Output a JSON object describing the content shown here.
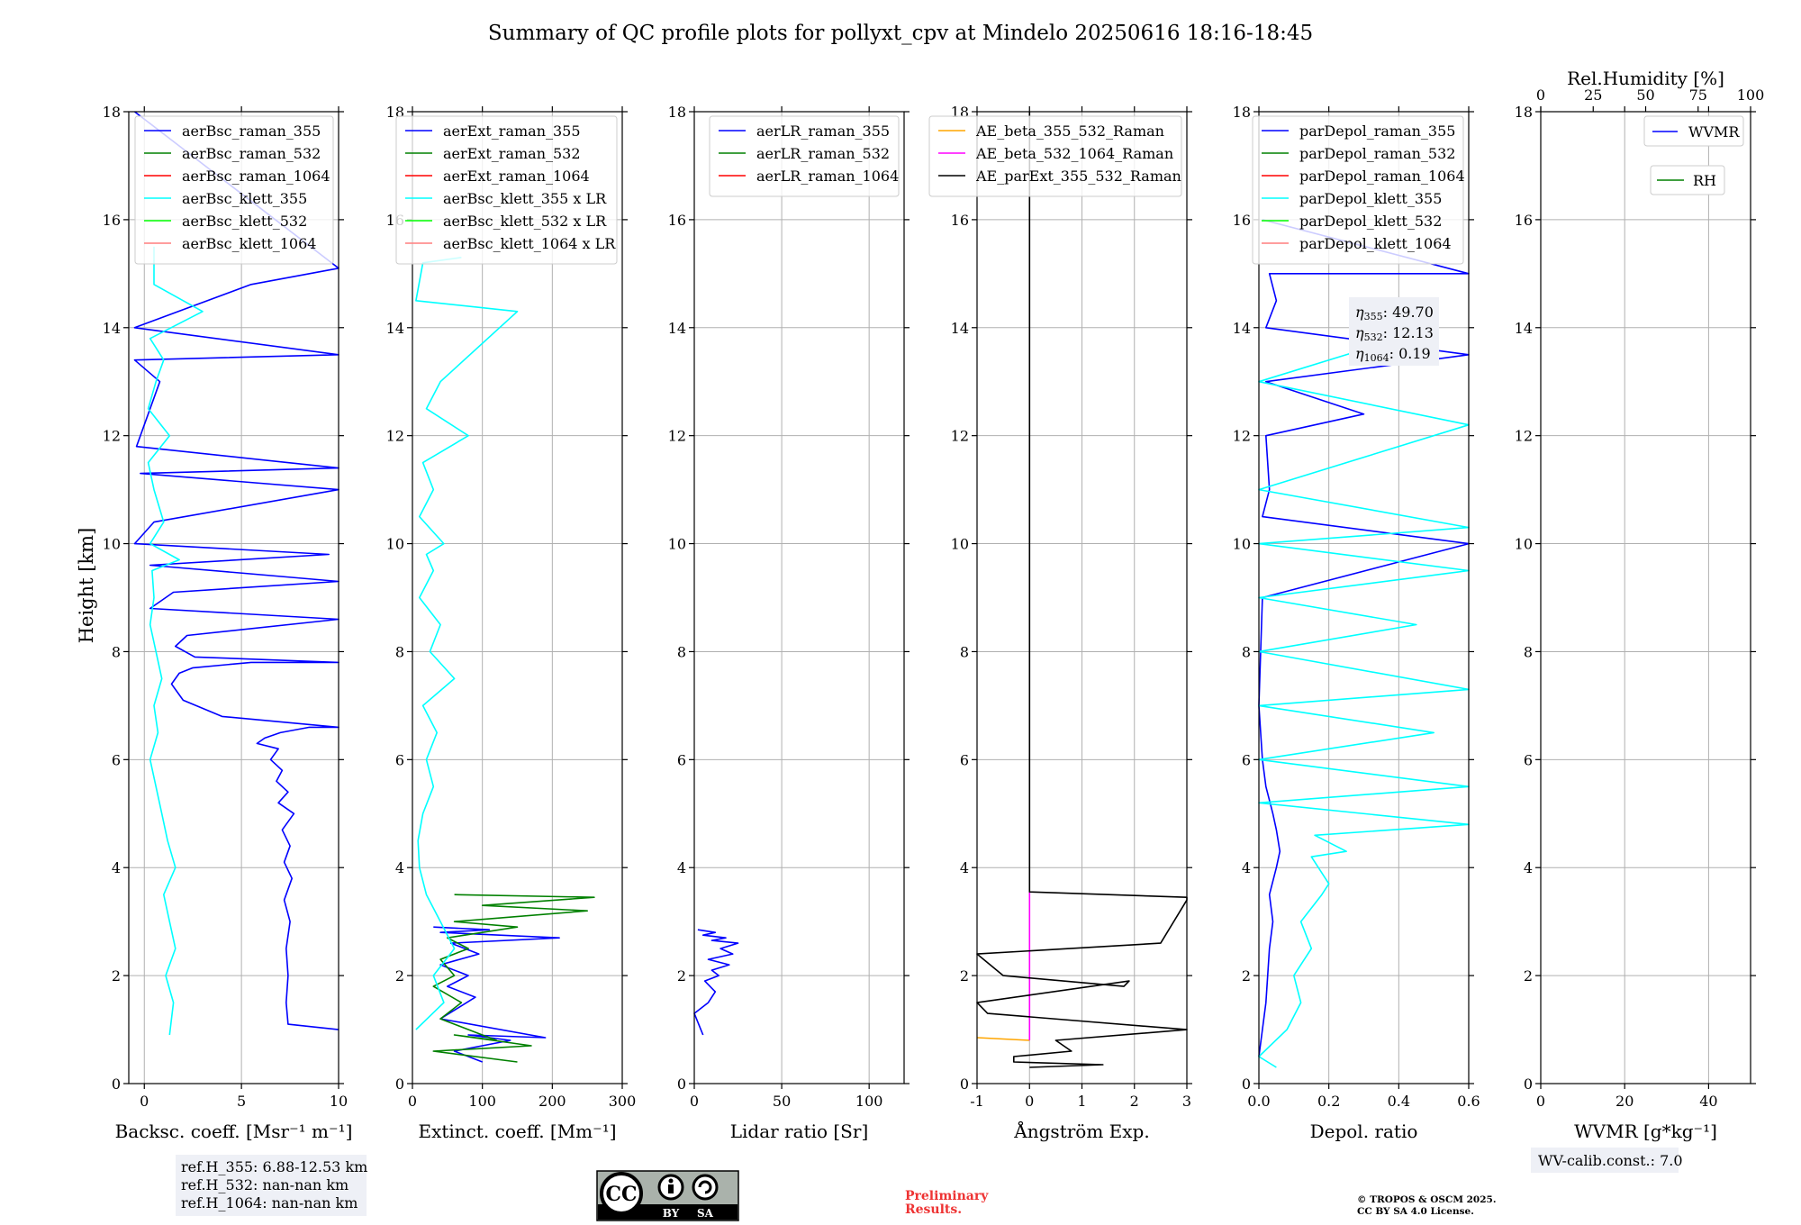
{
  "title": "Summary of QC profile plots for pollyxt_cpv at Mindelo 20250616 18:16-18:45",
  "ylabel": "Height [km]",
  "colors": {
    "blue": "#0000ff",
    "green": "#008000",
    "red": "#ff0000",
    "cyan": "#00ffff",
    "lime": "#00ff00",
    "salmon": "#ff7f7f",
    "orange": "#ffa500",
    "magenta": "#ff00ff",
    "black": "#000000",
    "grid": "#b0b0b0",
    "boxbg": "#eef0f6"
  },
  "chart_data": [
    {
      "id": "bsc",
      "type": "line",
      "xlabel": "Backsc. coeff. [Msr⁻¹ m⁻¹]",
      "xlim": [
        -0.8,
        10
      ],
      "ylim": [
        0,
        18
      ],
      "xticks": [
        0,
        5,
        10
      ],
      "yticks": [
        0,
        2,
        4,
        6,
        8,
        10,
        12,
        14,
        16,
        18
      ],
      "legend": "top-right",
      "legend_entries": [
        "aerBsc_raman_355",
        "aerBsc_raman_532",
        "aerBsc_raman_1064",
        "aerBsc_klett_355",
        "aerBsc_klett_532",
        "aerBsc_klett_1064"
      ],
      "legend_colors": [
        "blue",
        "green",
        "red",
        "cyan",
        "lime",
        "salmon"
      ],
      "series": [
        {
          "name": "aerBsc_raman_355",
          "color": "blue",
          "x": [
            10,
            7.4,
            7.3,
            7.4,
            7.3,
            7.5,
            7.2,
            7.6,
            7.2,
            7.5,
            7.1,
            7.7,
            6.9,
            7.4,
            6.8,
            7.1,
            6.5,
            6.9,
            5.8,
            6.2,
            7.0,
            8.5,
            10,
            4.0,
            2.0,
            1.4,
            1.8,
            2.5,
            5.5,
            10,
            2.6,
            1.6,
            2.2,
            10,
            0.3,
            1.5,
            10,
            0.3,
            9.5,
            -0.5,
            0.5,
            10,
            -0.2,
            10,
            -0.4,
            0.8,
            -0.5,
            10,
            -0.5,
            5.5,
            10,
            -0.5
          ],
          "y": [
            1.0,
            1.1,
            1.5,
            2.0,
            2.5,
            3.0,
            3.4,
            3.8,
            4.1,
            4.4,
            4.7,
            5.0,
            5.2,
            5.4,
            5.6,
            5.8,
            6.0,
            6.2,
            6.3,
            6.4,
            6.5,
            6.6,
            6.6,
            6.8,
            7.1,
            7.4,
            7.6,
            7.7,
            7.8,
            7.8,
            7.9,
            8.1,
            8.3,
            8.6,
            8.8,
            9.1,
            9.3,
            9.6,
            9.8,
            10.0,
            10.4,
            11.0,
            11.3,
            11.4,
            11.8,
            13.0,
            13.4,
            13.5,
            14.0,
            14.8,
            15.1,
            18.0
          ]
        },
        {
          "name": "aerBsc_klett_355",
          "color": "cyan",
          "x": [
            1.3,
            1.5,
            1.1,
            1.6,
            1.3,
            1.0,
            1.6,
            1.2,
            0.9,
            0.6,
            0.3,
            0.7,
            0.5,
            0.9,
            0.6,
            0.3,
            0.5,
            0.4,
            1.8,
            0.3,
            1.0,
            0.5,
            0.2,
            1.3,
            0.2,
            0.6,
            1.0,
            0.3,
            3.0,
            0.5,
            0.5
          ],
          "y": [
            0.9,
            1.5,
            2.0,
            2.5,
            3.0,
            3.5,
            4.0,
            4.5,
            5.0,
            5.5,
            6.0,
            6.5,
            7.0,
            7.5,
            8.0,
            8.5,
            9.0,
            9.5,
            9.7,
            10.0,
            10.4,
            11.0,
            11.5,
            12.0,
            12.5,
            13.0,
            13.4,
            13.8,
            14.3,
            14.8,
            15.5
          ]
        }
      ],
      "box": [
        "ref.H_355: 6.88-12.53 km",
        "ref.H_532: nan-nan km",
        "ref.H_1064: nan-nan km"
      ]
    },
    {
      "id": "ext",
      "type": "line",
      "xlabel": "Extinct. coeff. [Mm⁻¹]",
      "xlim": [
        0,
        300
      ],
      "ylim": [
        0,
        18
      ],
      "xticks": [
        0,
        100,
        200,
        300
      ],
      "yticks": [
        0,
        2,
        4,
        6,
        8,
        10,
        12,
        14,
        16,
        18
      ],
      "legend": "top-right",
      "legend_entries": [
        "aerExt_raman_355",
        "aerExt_raman_532",
        "aerExt_raman_1064",
        "aerBsc_klett_355 x LR",
        "aerBsc_klett_532 x LR",
        "aerBsc_klett_1064 x LR"
      ],
      "legend_colors": [
        "blue",
        "green",
        "red",
        "cyan",
        "lime",
        "salmon"
      ],
      "series": [
        {
          "name": "aerExt_raman_355",
          "color": "blue",
          "x": [
            100,
            60,
            140,
            80,
            190,
            40,
            90,
            50,
            80,
            40,
            95,
            55,
            210,
            40,
            110,
            30
          ],
          "y": [
            0.4,
            0.6,
            0.8,
            0.9,
            0.85,
            1.2,
            1.6,
            1.8,
            2.0,
            2.2,
            2.4,
            2.6,
            2.7,
            2.8,
            2.85,
            2.9
          ]
        },
        {
          "name": "aerExt_raman_532",
          "color": "green",
          "x": [
            150,
            30,
            170,
            60,
            120,
            40,
            70,
            30,
            60,
            40,
            80,
            50,
            150,
            60,
            250,
            100,
            260,
            60
          ],
          "y": [
            0.4,
            0.6,
            0.7,
            0.9,
            0.8,
            1.2,
            1.5,
            1.8,
            2.0,
            2.3,
            2.5,
            2.7,
            2.9,
            3.0,
            3.2,
            3.3,
            3.45,
            3.5
          ]
        },
        {
          "name": "aerBsc_klett_355 x LR",
          "color": "cyan",
          "x": [
            5,
            45,
            30,
            60,
            40,
            20,
            10,
            8,
            15,
            30,
            20,
            35,
            15,
            60,
            25,
            40,
            10,
            30,
            20,
            45,
            10,
            30,
            15,
            80,
            20,
            40,
            150,
            5,
            15,
            70
          ],
          "y": [
            1.0,
            1.5,
            2.0,
            2.5,
            3.0,
            3.5,
            4.0,
            4.5,
            5.0,
            5.5,
            6.0,
            6.5,
            7.0,
            7.5,
            8.0,
            8.5,
            9.0,
            9.5,
            9.8,
            10.0,
            10.5,
            11.0,
            11.5,
            12.0,
            12.5,
            13.0,
            14.3,
            14.5,
            15.2,
            15.3
          ]
        }
      ]
    },
    {
      "id": "lr",
      "type": "line",
      "xlabel": "Lidar ratio [Sr]",
      "xlim": [
        0,
        120
      ],
      "ylim": [
        0,
        18
      ],
      "xticks": [
        0,
        50,
        100
      ],
      "yticks": [
        0,
        2,
        4,
        6,
        8,
        10,
        12,
        14,
        16,
        18
      ],
      "legend": "top-right",
      "legend_entries": [
        "aerLR_raman_355",
        "aerLR_raman_532",
        "aerLR_raman_1064"
      ],
      "legend_colors": [
        "blue",
        "green",
        "red"
      ],
      "series": [
        {
          "name": "aerLR_raman_355",
          "color": "blue",
          "x": [
            5,
            0,
            8,
            12,
            6,
            14,
            10,
            20,
            8,
            22,
            15,
            25,
            10,
            18,
            5,
            12,
            2
          ],
          "y": [
            0.9,
            1.3,
            1.5,
            1.7,
            1.9,
            2.0,
            2.1,
            2.2,
            2.3,
            2.4,
            2.5,
            2.6,
            2.65,
            2.7,
            2.75,
            2.8,
            2.85
          ]
        }
      ]
    },
    {
      "id": "ae",
      "type": "line",
      "xlabel": "Ångström Exp.",
      "xlim": [
        -1,
        3
      ],
      "ylim": [
        0,
        18
      ],
      "xticks": [
        -1,
        0,
        1,
        2,
        3
      ],
      "yticks": [
        0,
        2,
        4,
        6,
        8,
        10,
        12,
        14,
        16,
        18
      ],
      "legend": "top-right",
      "legend_entries": [
        "AE_beta_355_532_Raman",
        "AE_beta_532_1064_Raman",
        "AE_parExt_355_532_Raman"
      ],
      "legend_colors": [
        "orange",
        "magenta",
        "black"
      ],
      "series": [
        {
          "name": "AE_beta_355_532_Raman",
          "color": "orange",
          "x": [
            -1,
            0
          ],
          "y": [
            0.85,
            0.8
          ]
        },
        {
          "name": "AE_beta_532_1064_Raman",
          "color": "magenta",
          "x": [
            0,
            0
          ],
          "y": [
            0.8,
            3.55
          ]
        },
        {
          "name": "AE_parExt_355_532_Raman",
          "color": "black",
          "x": [
            0,
            0,
            3,
            3,
            2.5,
            -1,
            -0.5,
            1.8,
            1.9,
            -1,
            -0.8,
            3,
            0.5,
            0.8,
            -0.3,
            -0.3,
            1.4,
            0.0
          ],
          "y": [
            18,
            3.55,
            3.45,
            3.4,
            2.6,
            2.4,
            2.0,
            1.8,
            1.9,
            1.5,
            1.3,
            1.0,
            0.8,
            0.6,
            0.5,
            0.4,
            0.35,
            0.3
          ]
        }
      ]
    },
    {
      "id": "dep",
      "type": "line",
      "xlabel": "Depol. ratio",
      "xlim": [
        0,
        0.6
      ],
      "ylim": [
        0,
        18
      ],
      "xticks": [
        0.0,
        0.2,
        0.4,
        0.6
      ],
      "xtick_labels": [
        "0.0",
        "0.2",
        "0.4",
        "0.6"
      ],
      "yticks": [
        0,
        2,
        4,
        6,
        8,
        10,
        12,
        14,
        16,
        18
      ],
      "legend": "top-right",
      "legend_entries": [
        "parDepol_raman_355",
        "parDepol_raman_532",
        "parDepol_raman_1064",
        "parDepol_klett_355",
        "parDepol_klett_532",
        "parDepol_klett_1064"
      ],
      "legend_colors": [
        "blue",
        "green",
        "red",
        "cyan",
        "lime",
        "salmon"
      ],
      "series": [
        {
          "name": "parDepol_raman_355",
          "color": "blue",
          "x": [
            0.0,
            0.02,
            0.03,
            0.04,
            0.03,
            0.05,
            0.06,
            0.05,
            0.04,
            0.02,
            0.01,
            0.0,
            0.01,
            0.6,
            0.01,
            0.03,
            0.02,
            0.3,
            0.02,
            0.6,
            0.02,
            0.05,
            0.03,
            0.6,
            0.01
          ],
          "y": [
            0.5,
            1.5,
            2.5,
            3.0,
            3.5,
            4.0,
            4.3,
            4.7,
            5.0,
            5.5,
            6.0,
            7.0,
            9.0,
            10.0,
            10.5,
            11.0,
            12.0,
            12.4,
            13.0,
            13.5,
            14.0,
            14.5,
            15.0,
            15.0,
            16.0
          ]
        },
        {
          "name": "parDepol_klett_355",
          "color": "cyan",
          "x": [
            0.05,
            0.0,
            0.08,
            0.12,
            0.1,
            0.15,
            0.12,
            0.18,
            0.2,
            0.15,
            0.25,
            0.16,
            0.6,
            0.0,
            0.6,
            0.0,
            0.5,
            0.0,
            0.6,
            0.0,
            0.45,
            0.0,
            0.6,
            0.0,
            0.6,
            0.0,
            0.6,
            0.0,
            0.4
          ],
          "y": [
            0.3,
            0.5,
            1.0,
            1.5,
            2.0,
            2.5,
            3.0,
            3.5,
            3.7,
            4.2,
            4.3,
            4.6,
            4.8,
            5.2,
            5.5,
            6.0,
            6.5,
            7.0,
            7.3,
            8.0,
            8.5,
            9.0,
            9.5,
            10.0,
            10.3,
            11.0,
            12.2,
            13.0,
            13.8
          ]
        }
      ],
      "annotations": [
        "49.70",
        "12.13",
        "0.19"
      ],
      "annotation_symbols": [
        "355",
        "532",
        "1064"
      ]
    },
    {
      "id": "wv",
      "type": "line",
      "xlabel": "WVMR [g*kg⁻¹]",
      "top_xlabel": "Rel.Humidity [%]",
      "xlim": [
        0,
        50
      ],
      "top_xlim": [
        0,
        100
      ],
      "ylim": [
        0,
        18
      ],
      "xticks": [
        0,
        20,
        40
      ],
      "top_xticks": [
        0,
        25,
        50,
        75,
        100
      ],
      "yticks": [
        0,
        2,
        4,
        6,
        8,
        10,
        12,
        14,
        16,
        18
      ],
      "legend": "top-right",
      "legend_entries": [
        "WVMR",
        "RH"
      ],
      "legend_colors": [
        "blue",
        "green"
      ],
      "series": [],
      "box": [
        "WV-calib.const.: 7.0"
      ]
    }
  ],
  "footer": {
    "cc_label": "CC",
    "cc_by": "BY",
    "cc_sa": "SA",
    "preliminary_line1": "Preliminary",
    "preliminary_line2": "Results.",
    "copyright_line1": "© TROPOS & OSCM 2025.",
    "copyright_line2": "CC BY SA 4.0 License."
  }
}
